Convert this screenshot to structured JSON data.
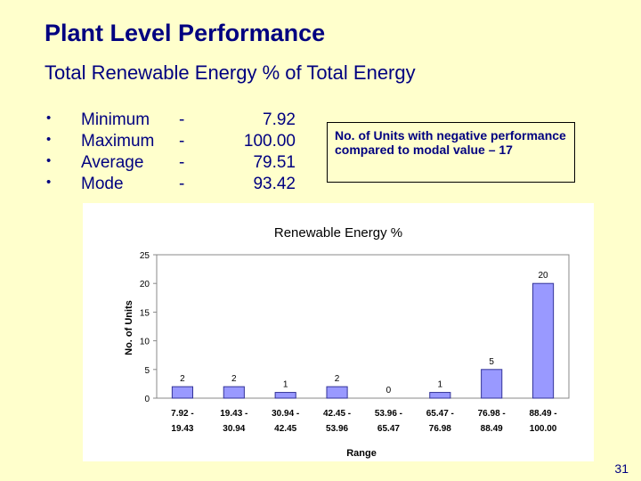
{
  "slide": {
    "title": "Plant Level Performance",
    "subtitle": "Total Renewable Energy % of Total Energy",
    "page_number": "31"
  },
  "stats": [
    {
      "bullet": "•",
      "label": "Minimum",
      "dash": "-",
      "value": "7.92"
    },
    {
      "bullet": "•",
      "label": "Maximum",
      "dash": "-",
      "value": "100.00"
    },
    {
      "bullet": "•",
      "label": "Average",
      "dash": "-",
      "value": "79.51"
    },
    {
      "bullet": "•",
      "label": "Mode",
      "dash": "-",
      "value": "93.42"
    }
  ],
  "note": {
    "text": "No. of Units with negative performance compared to modal value – 17"
  },
  "chart_data": {
    "type": "bar",
    "title": "Renewable Energy %",
    "xlabel": "Range",
    "ylabel": "No. of Units",
    "categories": [
      [
        "7.92 -",
        "19.43"
      ],
      [
        "19.43 -",
        "30.94"
      ],
      [
        "30.94 -",
        "42.45"
      ],
      [
        "42.45 -",
        "53.96"
      ],
      [
        "53.96 -",
        "65.47"
      ],
      [
        "65.47 -",
        "76.98"
      ],
      [
        "76.98 -",
        "88.49"
      ],
      [
        "88.49 -",
        "100.00"
      ]
    ],
    "values": [
      2,
      2,
      1,
      2,
      0,
      1,
      5,
      20
    ],
    "ylim": [
      0,
      25
    ],
    "yticks": [
      0,
      5,
      10,
      15,
      20,
      25
    ],
    "grid": false,
    "legend": "none",
    "bar_color": "#9999ff",
    "bar_stroke": "#333399"
  }
}
